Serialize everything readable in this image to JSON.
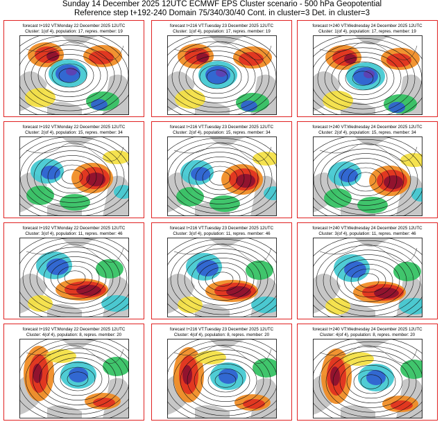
{
  "header": {
    "title": "Sunday 14 December 2025 12UTC ECMWF EPS Cluster scenario - 500 hPa Geopotential",
    "subtitle": "Reference step t+192-240 Domain 75/340/30/40 Cont. in cluster=3 Det. in cluster=3"
  },
  "colors": {
    "frame": "#e02020",
    "deep_red": "#8b1030",
    "red": "#e03020",
    "orange": "#f08a20",
    "yellow": "#f4e040",
    "green": "#30c060",
    "cyan": "#40c8d0",
    "blue": "#3060d0",
    "purple": "#6040b0",
    "land": "#bdbdbd"
  },
  "forecast_steps": [
    {
      "line1": "forecast t+192 VT:Monday 22 December 2025 12UTC"
    },
    {
      "line1": "forecast t+216 VT:Tuesday 23 December 2025 12UTC"
    },
    {
      "line1": "forecast t+240 VT:Wednesday 24 December 2025 12UTC"
    }
  ],
  "clusters": [
    {
      "line2": "Cluster: 1(of 4), population: 17, repres. member: 19"
    },
    {
      "line2": "Cluster: 2(of 4), population: 15, repres. member: 34"
    },
    {
      "line2": "Cluster: 3(of 4), population: 11, repres. member: 46"
    },
    {
      "line2": "Cluster: 4(of 4), population: 8, repres. member: 20"
    }
  ]
}
